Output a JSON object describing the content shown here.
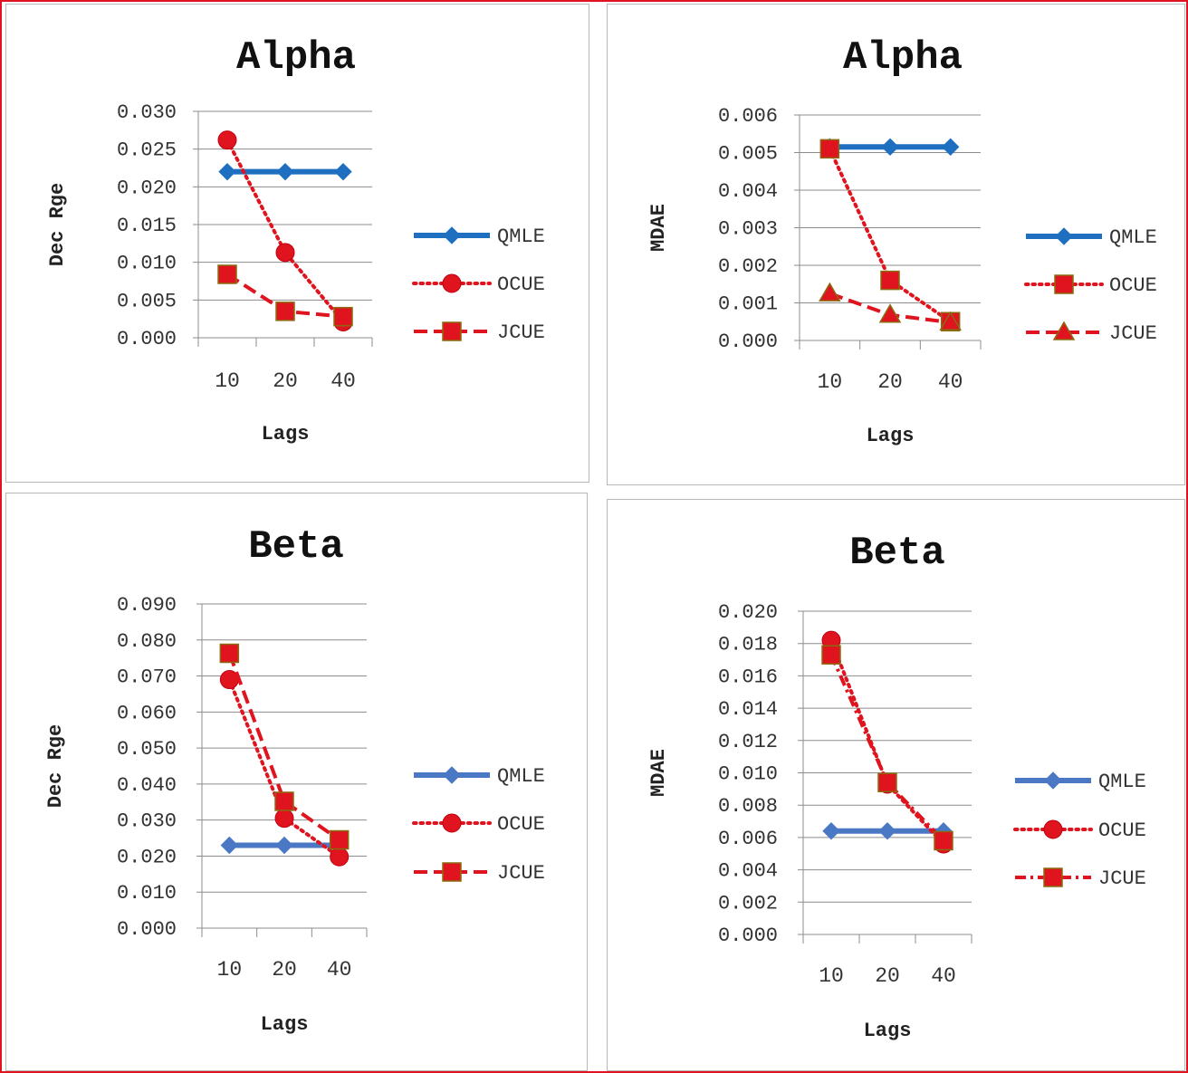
{
  "chart_data": [
    {
      "type": "line",
      "title": "Alpha",
      "xlabel": "Lags",
      "ylabel": "Dec Rge",
      "categories": [
        "10",
        "20",
        "40"
      ],
      "ylim": [
        0,
        0.03
      ],
      "yticks": [
        "0.000",
        "0.005",
        "0.010",
        "0.015",
        "0.020",
        "0.025",
        "0.030"
      ],
      "grid": true,
      "legend": "right",
      "series": [
        {
          "name": "QMLE",
          "values": [
            0.022,
            0.022,
            0.022
          ],
          "color": "#1f6fc1",
          "marker": "diamond",
          "dash": "solid"
        },
        {
          "name": "OCUE",
          "values": [
            0.0262,
            0.0113,
            0.0021
          ],
          "color": "#e0141e",
          "marker": "circle",
          "dash": "dotted"
        },
        {
          "name": "JCUE",
          "values": [
            0.0084,
            0.0035,
            0.0028
          ],
          "color": "#e0141e",
          "marker": "square",
          "dash": "dashed"
        }
      ]
    },
    {
      "type": "line",
      "title": "Alpha",
      "xlabel": "Lags",
      "ylabel": "MDAE",
      "categories": [
        "10",
        "20",
        "40"
      ],
      "ylim": [
        0,
        0.006
      ],
      "yticks": [
        "0.000",
        "0.001",
        "0.002",
        "0.003",
        "0.004",
        "0.005",
        "0.006"
      ],
      "grid": true,
      "legend": "right",
      "series": [
        {
          "name": "QMLE",
          "values": [
            0.00515,
            0.00515,
            0.00515
          ],
          "color": "#1f6fc1",
          "marker": "diamond",
          "dash": "solid"
        },
        {
          "name": "OCUE",
          "values": [
            0.0051,
            0.0016,
            0.0005
          ],
          "color": "#e0141e",
          "marker": "square",
          "dash": "dotted"
        },
        {
          "name": "JCUE",
          "values": [
            0.00125,
            0.00068,
            0.00048
          ],
          "color": "#e0141e",
          "marker": "triangle",
          "dash": "dashed"
        }
      ]
    },
    {
      "type": "line",
      "title": "Beta",
      "xlabel": "Lags",
      "ylabel": "Dec Rge",
      "categories": [
        "10",
        "20",
        "40"
      ],
      "ylim": [
        0,
        0.09
      ],
      "yticks": [
        "0.000",
        "0.010",
        "0.020",
        "0.030",
        "0.040",
        "0.050",
        "0.060",
        "0.070",
        "0.080",
        "0.090"
      ],
      "grid": true,
      "legend": "right",
      "series": [
        {
          "name": "QMLE",
          "values": [
            0.023,
            0.023,
            0.023
          ],
          "color": "#4a78c4",
          "marker": "diamond",
          "dash": "solid"
        },
        {
          "name": "OCUE",
          "values": [
            0.069,
            0.0305,
            0.0198
          ],
          "color": "#e0141e",
          "marker": "circle",
          "dash": "dotted"
        },
        {
          "name": "JCUE",
          "values": [
            0.0763,
            0.0352,
            0.0245
          ],
          "color": "#e0141e",
          "marker": "square",
          "dash": "dashed"
        }
      ]
    },
    {
      "type": "line",
      "title": "Beta",
      "xlabel": "Lags",
      "ylabel": "MDAE",
      "categories": [
        "10",
        "20",
        "40"
      ],
      "ylim": [
        0,
        0.02
      ],
      "yticks": [
        "0.000",
        "0.002",
        "0.004",
        "0.006",
        "0.008",
        "0.010",
        "0.012",
        "0.014",
        "0.016",
        "0.018",
        "0.020"
      ],
      "grid": true,
      "legend": "right",
      "series": [
        {
          "name": "QMLE",
          "values": [
            0.0064,
            0.0064,
            0.0064
          ],
          "color": "#4a78c4",
          "marker": "diamond",
          "dash": "solid"
        },
        {
          "name": "OCUE",
          "values": [
            0.0182,
            0.0093,
            0.0056
          ],
          "color": "#e0141e",
          "marker": "circle",
          "dash": "dotted"
        },
        {
          "name": "JCUE",
          "values": [
            0.0173,
            0.0094,
            0.0058
          ],
          "color": "#e0141e",
          "marker": "square",
          "dash": "dashdot"
        }
      ]
    }
  ]
}
